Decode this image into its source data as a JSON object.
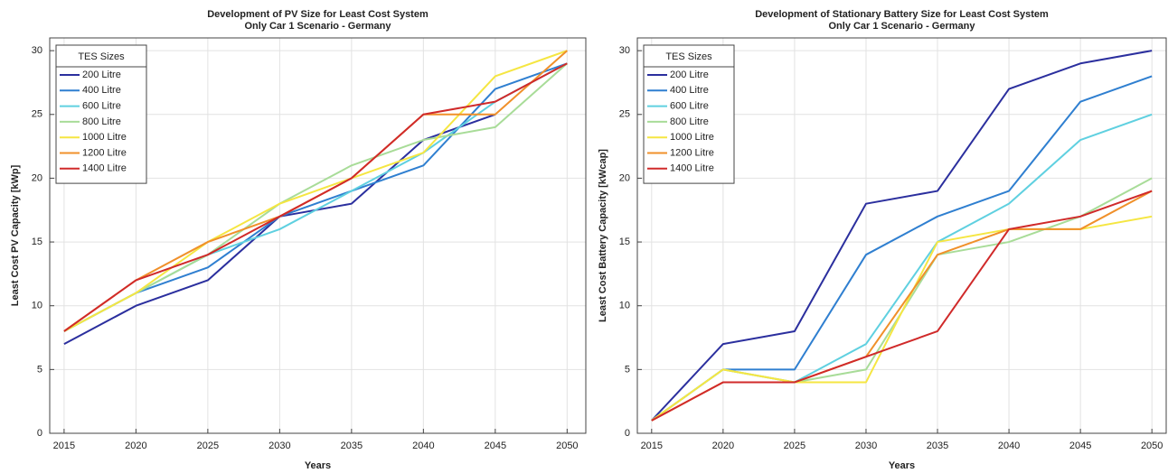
{
  "chart_data": [
    {
      "type": "line",
      "title": "Development of PV Size for Least Cost System",
      "subtitle": "Only Car 1 Scenario - Germany",
      "xlabel": "Years",
      "ylabel": "Least Cost PV Capacity [kWp]",
      "x": [
        2015,
        2020,
        2025,
        2030,
        2035,
        2040,
        2045,
        2050
      ],
      "xlim": [
        2014,
        2051.3
      ],
      "xticks": [
        2015,
        2020,
        2025,
        2030,
        2035,
        2040,
        2045,
        2050
      ],
      "ylim": [
        0,
        31
      ],
      "yticks": [
        0,
        5,
        10,
        15,
        20,
        25,
        30
      ],
      "grid": true,
      "legend_title": "TES Sizes",
      "legend": "upper left",
      "series": [
        {
          "name": "200 Litre",
          "color": "#2b2f9e",
          "values": [
            7,
            10,
            12,
            17,
            18,
            23,
            25,
            null
          ]
        },
        {
          "name": "400 Litre",
          "color": "#2f7fd0",
          "values": [
            8,
            11,
            13,
            17,
            19,
            21,
            27,
            29
          ]
        },
        {
          "name": "600 Litre",
          "color": "#5fd0e0",
          "values": [
            8,
            11,
            14,
            16,
            19,
            22,
            26,
            29
          ]
        },
        {
          "name": "800 Litre",
          "color": "#a8dc98",
          "values": [
            8,
            11,
            14,
            18,
            21,
            23,
            24,
            29
          ]
        },
        {
          "name": "1000 Litre",
          "color": "#f5e642",
          "values": [
            8,
            11,
            15,
            18,
            20,
            22,
            28,
            30
          ]
        },
        {
          "name": "1200 Litre",
          "color": "#f0902a",
          "values": [
            8,
            12,
            15,
            17,
            20,
            25,
            25,
            30
          ]
        },
        {
          "name": "1400 Litre",
          "color": "#d02a2a",
          "values": [
            8,
            12,
            14,
            17,
            20,
            25,
            26,
            29
          ]
        }
      ]
    },
    {
      "type": "line",
      "title": "Development of Stationary Battery Size for Least Cost System",
      "subtitle": "Only Car 1 Scenario - Germany",
      "xlabel": "Years",
      "ylabel": "Least Cost Battery Capacity [kWcap]",
      "x": [
        2015,
        2020,
        2025,
        2030,
        2035,
        2040,
        2045,
        2050
      ],
      "xlim": [
        2014,
        2051
      ],
      "xticks": [
        2015,
        2020,
        2025,
        2030,
        2035,
        2040,
        2045,
        2050
      ],
      "ylim": [
        0,
        31
      ],
      "yticks": [
        0,
        5,
        10,
        15,
        20,
        25,
        30
      ],
      "grid": true,
      "legend_title": "TES Sizes",
      "legend": "upper left",
      "series": [
        {
          "name": "200 Litre",
          "color": "#2b2f9e",
          "values": [
            1,
            7,
            8,
            18,
            19,
            27,
            29,
            30
          ]
        },
        {
          "name": "400 Litre",
          "color": "#2f7fd0",
          "values": [
            1,
            5,
            5,
            14,
            17,
            19,
            26,
            28
          ]
        },
        {
          "name": "600 Litre",
          "color": "#5fd0e0",
          "values": [
            1,
            5,
            4,
            7,
            15,
            18,
            23,
            25
          ]
        },
        {
          "name": "800 Litre",
          "color": "#a8dc98",
          "values": [
            1,
            5,
            4,
            5,
            14,
            15,
            17,
            20
          ]
        },
        {
          "name": "1000 Litre",
          "color": "#f5e642",
          "values": [
            1,
            5,
            4,
            4,
            15,
            16,
            16,
            17
          ]
        },
        {
          "name": "1200 Litre",
          "color": "#f0902a",
          "values": [
            1,
            4,
            4,
            6,
            14,
            16,
            16,
            19
          ]
        },
        {
          "name": "1400 Litre",
          "color": "#d02a2a",
          "values": [
            1,
            4,
            4,
            6,
            8,
            16,
            17,
            19
          ]
        }
      ]
    }
  ]
}
